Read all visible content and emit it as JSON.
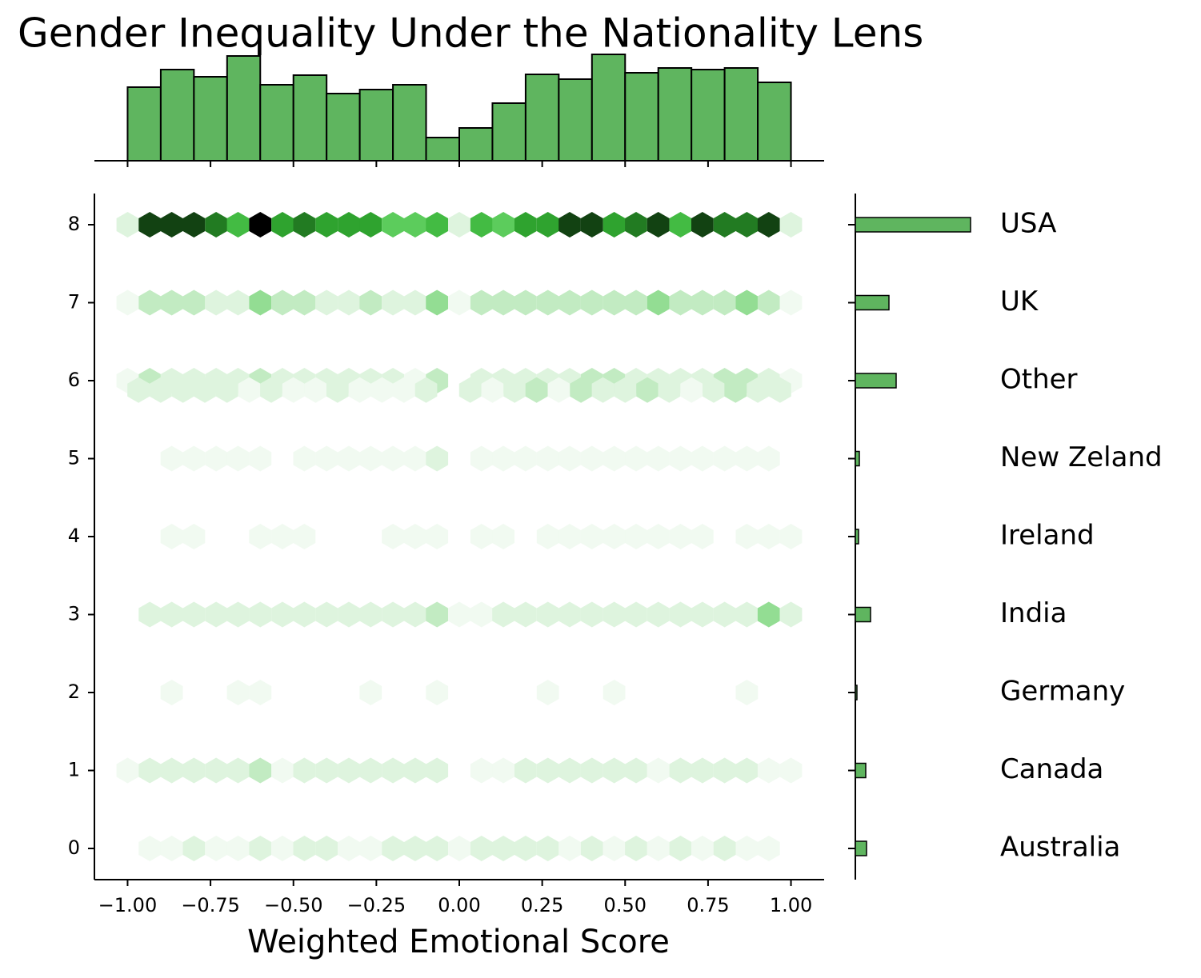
{
  "chart_data": [
    {
      "type": "hexbin",
      "title": "Gender Inequality Under the Nationality Lens",
      "xlabel": "Weighted Emotional Score",
      "xlim": [
        -1.1,
        1.1
      ],
      "ylim": [
        -0.4,
        8.4
      ],
      "xticks": [
        {
          "value": -1,
          "label": "−1.00"
        },
        {
          "value": -0.75,
          "label": "−0.75"
        },
        {
          "value": -0.5,
          "label": "−0.50"
        },
        {
          "value": -0.25,
          "label": "−0.25"
        },
        {
          "value": 0,
          "label": "0.00"
        },
        {
          "value": 0.25,
          "label": "0.25"
        },
        {
          "value": 0.5,
          "label": "0.50"
        },
        {
          "value": 0.75,
          "label": "0.75"
        },
        {
          "value": 1,
          "label": "1.00"
        }
      ],
      "yticks": [
        0,
        1,
        2,
        3,
        4,
        5,
        6,
        7,
        8
      ],
      "cmap": [
        "#ffffff",
        "#e8f7e8",
        "#b8e8b8",
        "#5ccc5c",
        "#33b033",
        "#1e6e1e",
        "#000000"
      ],
      "clim": [
        0,
        10
      ],
      "x": [
        -1,
        -0.933,
        -0.867,
        -0.8,
        -0.733,
        -0.667,
        -0.6,
        -0.533,
        -0.467,
        -0.4,
        -0.333,
        -0.267,
        -0.2,
        -0.133,
        -0.067,
        0,
        0.067,
        0.133,
        0.2,
        0.267,
        0.333,
        0.4,
        0.467,
        0.533,
        0.6,
        0.667,
        0.733,
        0.8,
        0.867,
        0.933,
        1
      ],
      "x_offset": [
        -0.967,
        -0.9,
        -0.833,
        -0.767,
        -0.7,
        -0.633,
        -0.567,
        -0.5,
        -0.433,
        -0.367,
        -0.3,
        -0.233,
        -0.167,
        -0.1,
        -0.033,
        0.033,
        0.1,
        0.167,
        0.233,
        0.3,
        0.367,
        0.433,
        0.5,
        0.567,
        0.633,
        0.7,
        0.767,
        0.833,
        0.9,
        0.967
      ],
      "rows": [
        {
          "y": 8,
          "counts": [
            2,
            9,
            9,
            9,
            8,
            6,
            10,
            7,
            8,
            7,
            7,
            7,
            5,
            5,
            6,
            2,
            6,
            5,
            7,
            7,
            9,
            9,
            7,
            8,
            9,
            6,
            9,
            8,
            8,
            9,
            2
          ]
        },
        {
          "y": 7,
          "counts": [
            1,
            3,
            3,
            3,
            2,
            2,
            4,
            3,
            3,
            2,
            2,
            3,
            2,
            2,
            4,
            1,
            3,
            3,
            3,
            3,
            3,
            3,
            3,
            3,
            4,
            3,
            3,
            3,
            4,
            3,
            1
          ]
        },
        {
          "y": 6,
          "counts": [
            1,
            3,
            2,
            2,
            2,
            2,
            3,
            2,
            2,
            2,
            2,
            2,
            2,
            1,
            3,
            0,
            2,
            2,
            2,
            2,
            2,
            3,
            3,
            2,
            2,
            2,
            2,
            3,
            3,
            2,
            1
          ]
        },
        {
          "y": 5.88,
          "offset": true,
          "counts": [
            2,
            2,
            2,
            2,
            2,
            1,
            2,
            1,
            1,
            2,
            1,
            1,
            1,
            2,
            0,
            2,
            1,
            2,
            3,
            1,
            3,
            2,
            2,
            3,
            2,
            1,
            2,
            3,
            2,
            2
          ]
        },
        {
          "y": 5,
          "counts": [
            0,
            0,
            1,
            1,
            1,
            1,
            1,
            0,
            1,
            1,
            1,
            1,
            1,
            1,
            2,
            0,
            1,
            1,
            1,
            1,
            1,
            1,
            1,
            1,
            1,
            1,
            1,
            1,
            1,
            1,
            0
          ]
        },
        {
          "y": 4,
          "counts": [
            0,
            0,
            1,
            1,
            0,
            0,
            1,
            1,
            1,
            0,
            0,
            0,
            1,
            1,
            1,
            0,
            1,
            1,
            0,
            1,
            1,
            1,
            1,
            1,
            1,
            1,
            1,
            0,
            1,
            1,
            1
          ]
        },
        {
          "y": 3,
          "counts": [
            0,
            2,
            2,
            2,
            2,
            2,
            2,
            2,
            2,
            2,
            2,
            2,
            2,
            2,
            3,
            1,
            1,
            2,
            2,
            2,
            2,
            2,
            2,
            2,
            2,
            2,
            2,
            2,
            2,
            4,
            2
          ]
        },
        {
          "y": 2,
          "counts": [
            0,
            0,
            1,
            0,
            0,
            1,
            1,
            0,
            0,
            0,
            0,
            1,
            0,
            0,
            1,
            0,
            0,
            0,
            0,
            1,
            0,
            0,
            1,
            0,
            0,
            0,
            0,
            0,
            1,
            0,
            0
          ]
        },
        {
          "y": 1,
          "counts": [
            1,
            2,
            2,
            2,
            2,
            2,
            3,
            1,
            2,
            2,
            2,
            2,
            2,
            2,
            2,
            0,
            1,
            1,
            2,
            2,
            2,
            2,
            2,
            2,
            1,
            2,
            2,
            2,
            2,
            1,
            1
          ]
        },
        {
          "y": 0,
          "counts": [
            0,
            1,
            1,
            2,
            1,
            1,
            2,
            1,
            2,
            2,
            1,
            1,
            2,
            2,
            2,
            1,
            2,
            2,
            2,
            2,
            1,
            2,
            1,
            2,
            1,
            2,
            1,
            2,
            1,
            1,
            0
          ]
        }
      ]
    },
    {
      "type": "histogram",
      "color": "#5fb55f",
      "xlim": [
        -1.1,
        1.1
      ],
      "ylim": [
        0,
        140
      ],
      "bins": [
        -1,
        -0.9,
        -0.8,
        -0.7,
        -0.6,
        -0.5,
        -0.4,
        -0.3,
        -0.2,
        -0.1,
        0,
        0.1,
        0.2,
        0.3,
        0.4,
        0.5,
        0.6,
        0.7,
        0.8,
        0.9,
        1
      ],
      "counts": [
        92,
        114,
        105,
        131,
        95,
        107,
        84,
        89,
        95,
        29,
        41,
        72,
        108,
        102,
        133,
        110,
        116,
        114,
        116,
        98
      ]
    },
    {
      "type": "barh",
      "color": "#5fb55f",
      "xlim": [
        0,
        150
      ],
      "ylim": [
        -0.4,
        8.4
      ],
      "categories": [
        "Australia",
        "Canada",
        "Germany",
        "India",
        "Ireland",
        "New Zeland",
        "Other",
        "UK",
        "USA"
      ],
      "values": [
        14,
        13,
        2,
        19,
        4,
        5,
        51,
        42,
        144
      ]
    }
  ]
}
